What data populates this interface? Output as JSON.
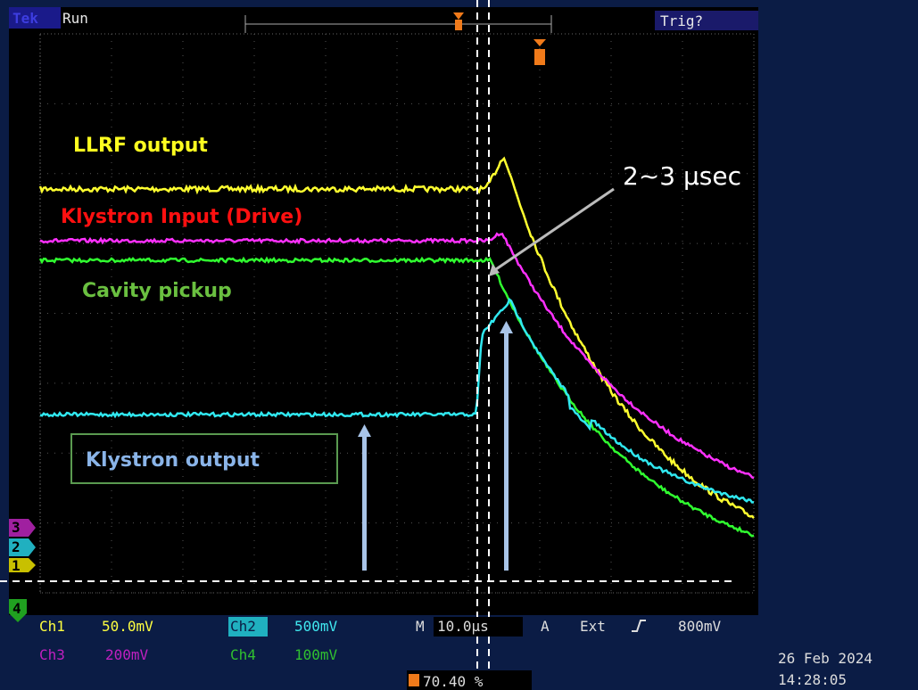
{
  "header": {
    "brand": "Tek",
    "state": "Run",
    "trigger_status": "Trig?"
  },
  "channel_markers": [
    "3",
    "2",
    "1",
    "4"
  ],
  "annotations": {
    "llrf": "LLRF output",
    "klystron_input": "Klystron Input (Drive)",
    "cavity": "Cavity pickup",
    "delay": "2~3 μsec",
    "klystron_output": "Klystron output"
  },
  "status": {
    "ch1": "Ch1",
    "ch1_scale": "50.0mV",
    "ch2": "Ch2",
    "ch2_scale": "500mV",
    "ch3": "Ch3",
    "ch3_scale": "200mV",
    "ch4": "Ch4",
    "ch4_scale": "100mV",
    "timebase_label": "M",
    "timebase": "10.0μs",
    "acq_label": "A",
    "trigger_source": "Ext",
    "trigger_level": "800mV",
    "trigger_position": "70.40 %",
    "date": "26 Feb 2024",
    "time": "14:28:05"
  }
}
